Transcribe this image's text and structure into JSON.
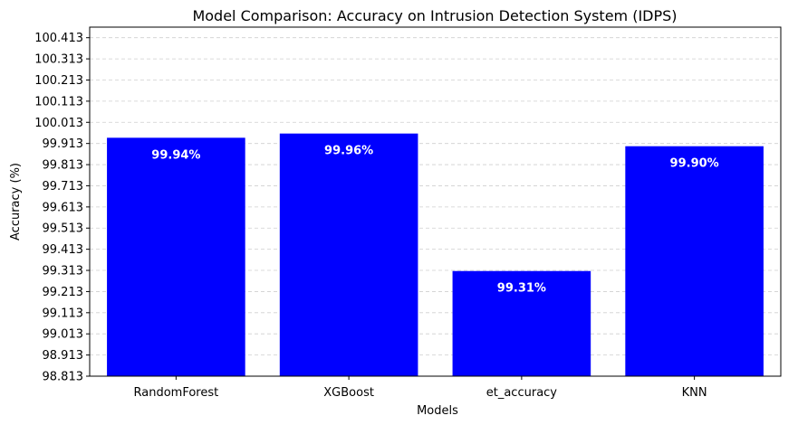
{
  "chart_data": {
    "type": "bar",
    "title": "Model Comparison: Accuracy on Intrusion Detection System (IDPS)",
    "xlabel": "Models",
    "ylabel": "Accuracy (%)",
    "categories": [
      "RandomForest",
      "XGBoost",
      "et_accuracy",
      "KNN"
    ],
    "values": [
      99.94,
      99.96,
      99.31,
      99.9
    ],
    "data_labels": [
      "99.94%",
      "99.96%",
      "99.31%",
      "99.90%"
    ],
    "ylim": [
      98.813,
      100.463
    ],
    "yticks": [
      "98.813",
      "98.913",
      "99.013",
      "99.113",
      "99.213",
      "99.313",
      "99.413",
      "99.513",
      "99.613",
      "99.713",
      "99.813",
      "99.913",
      "100.013",
      "100.113",
      "100.213",
      "100.313",
      "100.413"
    ],
    "grid": "y dashed",
    "bar_color": "#0000ff"
  }
}
